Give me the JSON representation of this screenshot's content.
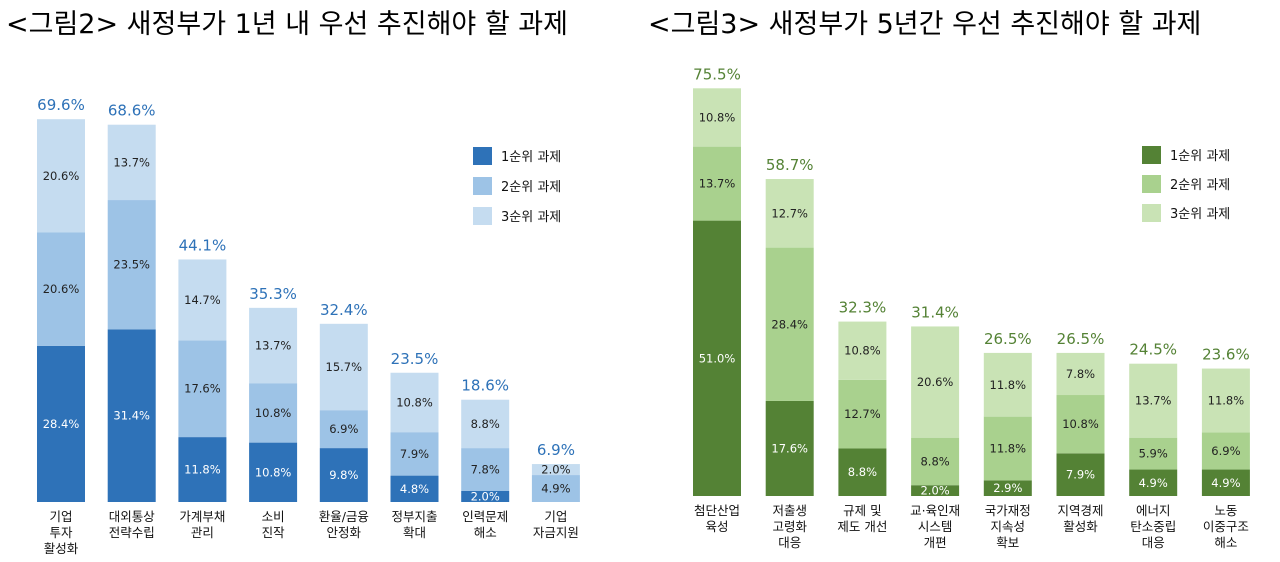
{
  "chart_data": [
    {
      "type": "bar",
      "stacked": true,
      "title": "<그림2> 새정부가 1년 내 우선 추진해야 할 과제",
      "categories": [
        [
          "기업",
          "투자",
          "활성화"
        ],
        [
          "대외통상",
          "전략수립"
        ],
        [
          "가계부채",
          "관리"
        ],
        [
          "소비",
          "진작"
        ],
        [
          "환율/금융",
          "안정화"
        ],
        [
          "정부지출",
          "확대"
        ],
        [
          "인력문제",
          "해소"
        ],
        [
          "기업",
          "자금지원"
        ]
      ],
      "series": [
        {
          "name": "1순위 과제",
          "color": "#2e72b8",
          "values": [
            28.4,
            31.4,
            11.8,
            10.8,
            9.8,
            4.8,
            2.0,
            0
          ]
        },
        {
          "name": "2순위 과제",
          "color": "#9dc3e6",
          "values": [
            20.6,
            23.5,
            17.6,
            10.8,
            6.9,
            7.9,
            7.8,
            4.9
          ]
        },
        {
          "name": "3순위 과제",
          "color": "#c5dcf0",
          "values": [
            20.6,
            13.7,
            14.7,
            13.7,
            15.7,
            10.8,
            8.8,
            2.0
          ]
        }
      ],
      "totals": [
        69.6,
        68.6,
        44.1,
        35.3,
        32.4,
        23.5,
        18.6,
        6.9
      ],
      "total_color": "#2e72b8",
      "legend": "top-right",
      "grid": false
    },
    {
      "type": "bar",
      "stacked": true,
      "title": "<그림3> 새정부가 5년간 우선 추진해야 할 과제",
      "categories": [
        [
          "첨단산업",
          "육성"
        ],
        [
          "저출생",
          "고령화",
          "대응"
        ],
        [
          "규제 및",
          "제도 개선"
        ],
        [
          "교·육인재",
          "시스템",
          "개편"
        ],
        [
          "국가재정",
          "지속성",
          "확보"
        ],
        [
          "지역경제",
          "활성화"
        ],
        [
          "에너지",
          "탄소중립",
          "대응"
        ],
        [
          "노동",
          "이중구조",
          "해소"
        ]
      ],
      "series": [
        {
          "name": "1순위 과제",
          "color": "#548235",
          "values": [
            51.0,
            17.6,
            8.8,
            2.0,
            2.9,
            7.9,
            4.9,
            4.9
          ]
        },
        {
          "name": "2순위 과제",
          "color": "#a9d18e",
          "values": [
            13.7,
            28.4,
            12.7,
            8.8,
            11.8,
            10.8,
            5.9,
            6.9
          ]
        },
        {
          "name": "3순위 과제",
          "color": "#c9e3b5",
          "values": [
            10.8,
            12.7,
            10.8,
            20.6,
            11.8,
            7.8,
            13.7,
            11.8
          ]
        }
      ],
      "totals": [
        75.5,
        58.7,
        32.3,
        31.4,
        26.5,
        26.5,
        24.5,
        23.6
      ],
      "total_color": "#548235",
      "legend": "top-right",
      "grid": false
    }
  ]
}
